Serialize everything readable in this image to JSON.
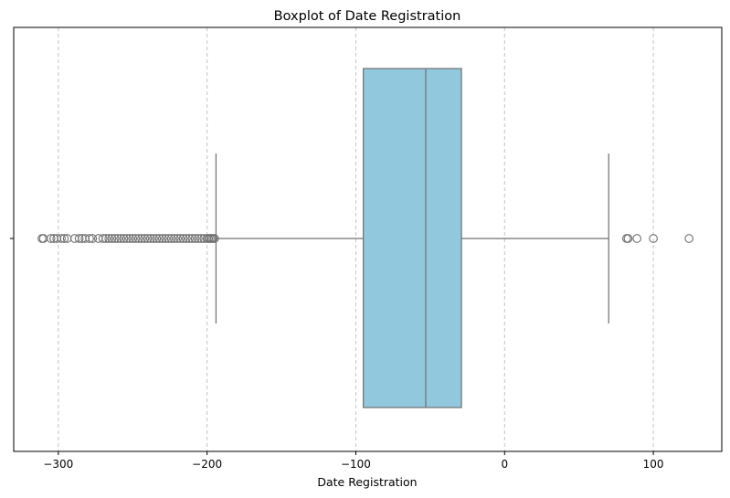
{
  "chart_data": {
    "type": "boxplot",
    "orientation": "horizontal",
    "title": "Boxplot of Date Registration",
    "xlabel": "Date Registration",
    "ylabel": "",
    "xlim": [
      -330,
      146
    ],
    "xticks": [
      -300,
      -200,
      -100,
      0,
      100
    ],
    "xtick_labels": [
      "−300",
      "−200",
      "−100",
      "0",
      "100"
    ],
    "grid": {
      "x": true,
      "y": false,
      "style": "dashed"
    },
    "box": {
      "whisker_low": -194,
      "q1": -95,
      "median": -53,
      "q3": -29,
      "whisker_high": 70,
      "fill_color": "#92c8de",
      "line_color": "#707070"
    },
    "outliers": [
      -311,
      -310,
      -305,
      -303,
      -301,
      -298,
      -296,
      -294,
      -289,
      -286,
      -284,
      -282,
      -279,
      -277,
      -273,
      -270,
      -268,
      -266,
      -264,
      -262,
      -260,
      -258,
      -256,
      -254,
      -252,
      -250,
      -248,
      -246,
      -244,
      -242,
      -240,
      -238,
      -236,
      -234,
      -232,
      -230,
      -228,
      -226,
      -224,
      -222,
      -220,
      -218,
      -216,
      -214,
      -212,
      -210,
      -208,
      -206,
      -204,
      -202,
      -200,
      -199,
      -198,
      -197,
      -196,
      -195,
      82,
      83,
      89,
      100,
      124
    ]
  }
}
